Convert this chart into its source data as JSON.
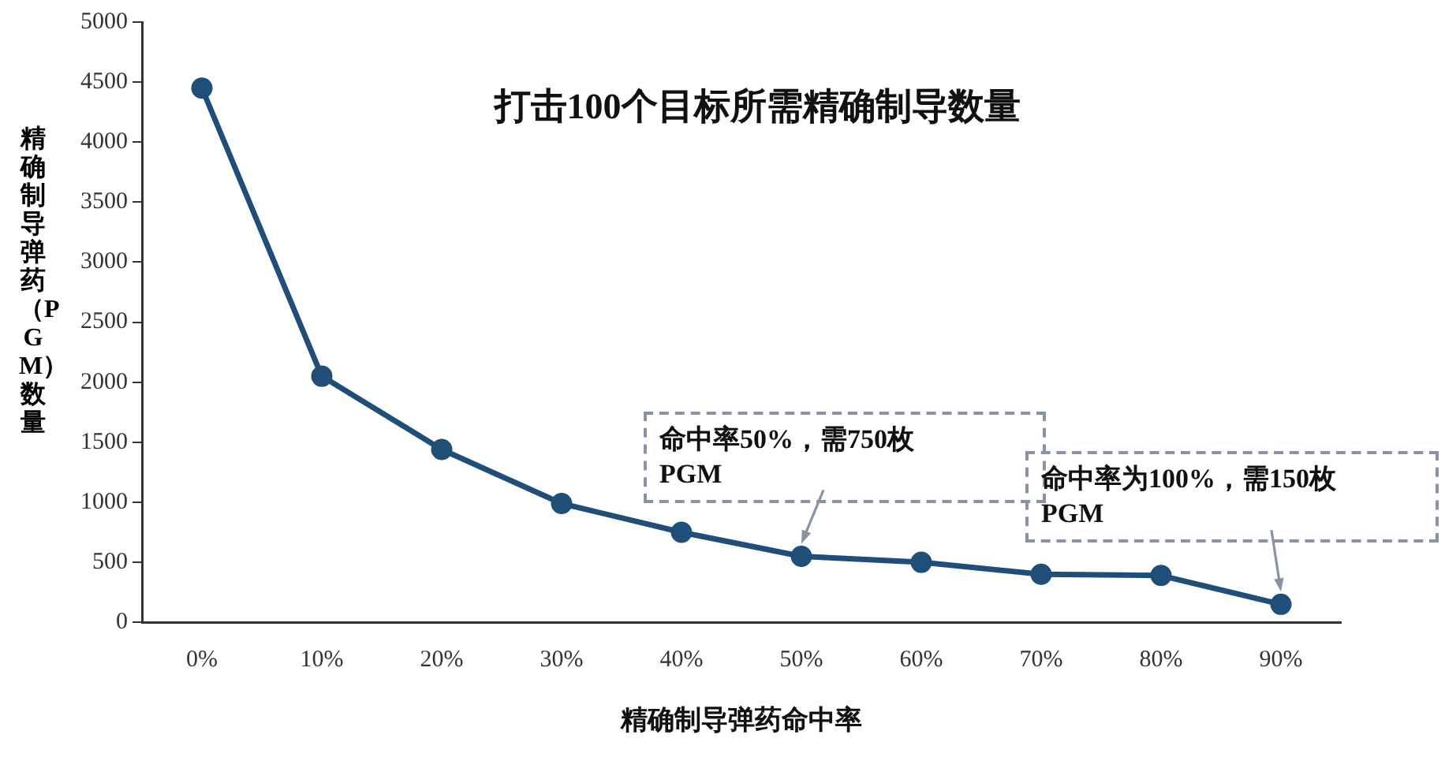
{
  "chart_data": {
    "type": "line",
    "title": "打击100个目标所需精确制导数量",
    "xlabel": "精确制导弹药命中率",
    "ylabel": "精确制导弹药（PGM）数量",
    "categories": [
      "0%",
      "10%",
      "20%",
      "30%",
      "40%",
      "50%",
      "60%",
      "70%",
      "80%",
      "90%"
    ],
    "series": [
      {
        "color": "#1f4e79",
        "values": [
          4450,
          2050,
          1440,
          990,
          750,
          550,
          500,
          400,
          390,
          150
        ]
      }
    ],
    "ylim": [
      0,
      5000
    ],
    "yticks": [
      0,
      500,
      1000,
      1500,
      2000,
      2500,
      3000,
      3500,
      4000,
      4500,
      5000
    ],
    "grid": false,
    "legend": false,
    "marker": "circle",
    "line_style": "solid",
    "annotations": [
      {
        "text": "命中率50%，需750枚PGM",
        "x": "50%",
        "y": 550
      },
      {
        "text": "命中率为100%，需150枚PGM",
        "x": "90%",
        "y": 150
      }
    ]
  }
}
